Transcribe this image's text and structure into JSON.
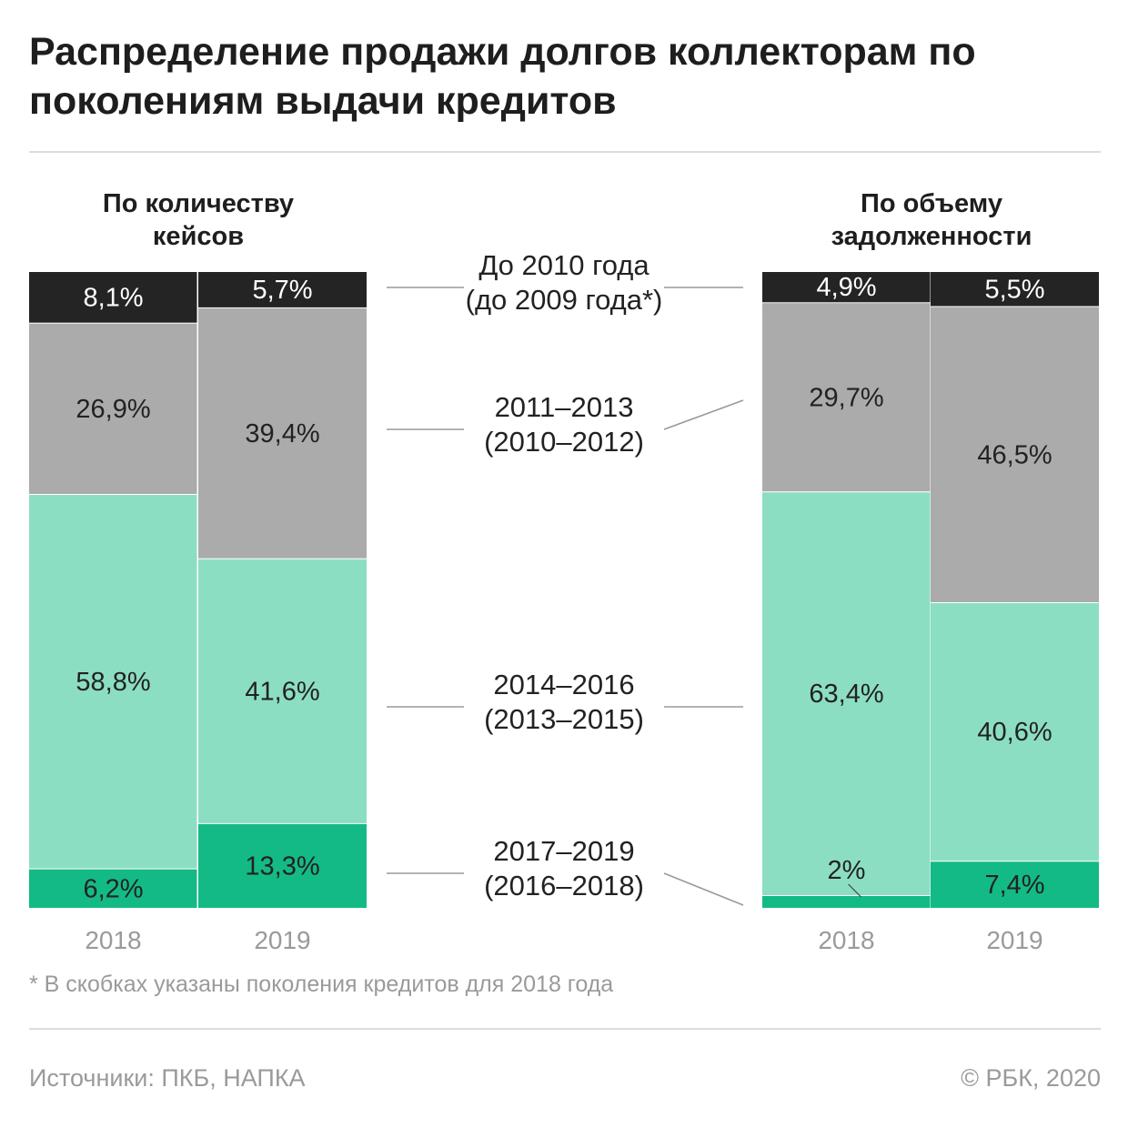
{
  "title": "Распределение продажи долгов коллекторам по поколениям выдачи кредитов",
  "colors": {
    "black": "#242424",
    "gray": "#ababab",
    "mint": "#8cdec3",
    "green": "#14ba85",
    "line": "#9a9a9a",
    "year": "#9a9a9a"
  },
  "chart_data": [
    {
      "type": "bar",
      "stacked": true,
      "percent": true,
      "title": "По количеству кейсов",
      "categories": [
        "2018",
        "2019"
      ],
      "series": [
        {
          "name": "2017–2019 (2016–2018)",
          "values": [
            6.2,
            13.3
          ],
          "labels": [
            "6,2%",
            "13,3%"
          ],
          "color": "#14ba85"
        },
        {
          "name": "2014–2016 (2013–2015)",
          "values": [
            58.8,
            41.6
          ],
          "labels": [
            "58,8%",
            "41,6%"
          ],
          "color": "#8cdec3"
        },
        {
          "name": "2011–2013 (2010–2012)",
          "values": [
            26.9,
            39.4
          ],
          "labels": [
            "26,9%",
            "39,4%"
          ],
          "color": "#ababab"
        },
        {
          "name": "До 2010 года (до 2009 года*)",
          "values": [
            8.1,
            5.7
          ],
          "labels": [
            "8,1%",
            "5,7%"
          ],
          "color": "#242424"
        }
      ]
    },
    {
      "type": "bar",
      "stacked": true,
      "percent": true,
      "title": "По объему задолженности",
      "categories": [
        "2018",
        "2019"
      ],
      "series": [
        {
          "name": "2017–2019 (2016–2018)",
          "values": [
            2.0,
            7.4
          ],
          "labels": [
            "2%",
            "7,4%"
          ],
          "color": "#14ba85"
        },
        {
          "name": "2014–2016 (2013–2015)",
          "values": [
            63.4,
            40.6
          ],
          "labels": [
            "63,4%",
            "40,6%"
          ],
          "color": "#8cdec3"
        },
        {
          "name": "2011–2013 (2010–2012)",
          "values": [
            29.7,
            46.5
          ],
          "labels": [
            "29,7%",
            "46,5%"
          ],
          "color": "#ababab"
        },
        {
          "name": "До 2010 года (до 2009 года*)",
          "values": [
            4.9,
            5.5
          ],
          "labels": [
            "4,9%",
            "5,5%"
          ],
          "color": "#242424"
        }
      ]
    }
  ],
  "legend": [
    {
      "line1": "До 2010 года",
      "line2": "(до 2009 года*)"
    },
    {
      "line1": "2011–2013",
      "line2": "(2010–2012)"
    },
    {
      "line1": "2014–2016",
      "line2": "(2013–2015)"
    },
    {
      "line1": "2017–2019",
      "line2": "(2016–2018)"
    }
  ],
  "footnote": "* В скобках указаны поколения кредитов для 2018 года",
  "source": "Источники: ПКБ, НАПКА",
  "copyright": "© РБК, 2020"
}
